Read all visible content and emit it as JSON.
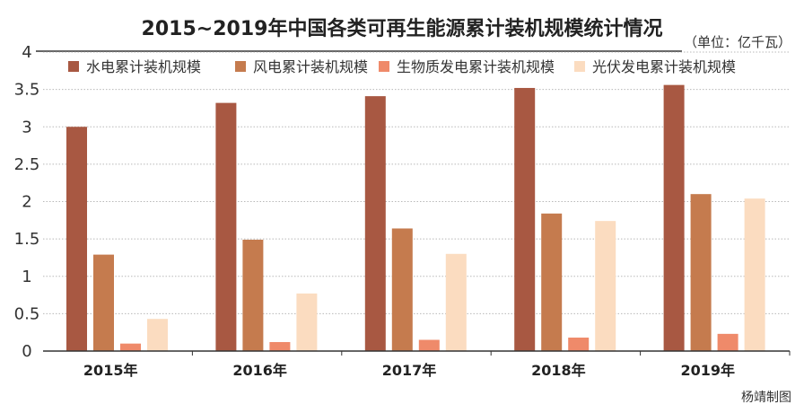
{
  "title": "2015~2019年中国各类可再生能源累计装机规模统计情况",
  "unit": "（单位：亿千瓦）",
  "credit": "杨靖制图",
  "colors": {
    "hydro": "#a85842",
    "wind": "#c57b4e",
    "biomass": "#ef8a6a",
    "solar": "#fbdcc0",
    "grid": "#b8b8b8",
    "axis": "#333333"
  },
  "chart_data": {
    "type": "bar",
    "categories": [
      "2015年",
      "2016年",
      "2017年",
      "2018年",
      "2019年"
    ],
    "series": [
      {
        "name": "水电累计装机规模",
        "color_key": "hydro",
        "values": [
          3.0,
          3.32,
          3.41,
          3.52,
          3.56
        ]
      },
      {
        "name": "风电累计装机规模",
        "color_key": "wind",
        "values": [
          1.29,
          1.49,
          1.64,
          1.84,
          2.1
        ]
      },
      {
        "name": "生物质发电累计装机规模",
        "color_key": "biomass",
        "values": [
          0.1,
          0.12,
          0.15,
          0.18,
          0.23
        ]
      },
      {
        "name": "光伏发电累计装机规模",
        "color_key": "solar",
        "values": [
          0.43,
          0.77,
          1.3,
          1.74,
          2.04
        ]
      }
    ],
    "yticks": [
      "0",
      "0.5",
      "1",
      "1.5",
      "2",
      "2.5",
      "3",
      "3.5",
      "4"
    ],
    "ylim": [
      0,
      4
    ],
    "grid": true,
    "legend": "top"
  }
}
